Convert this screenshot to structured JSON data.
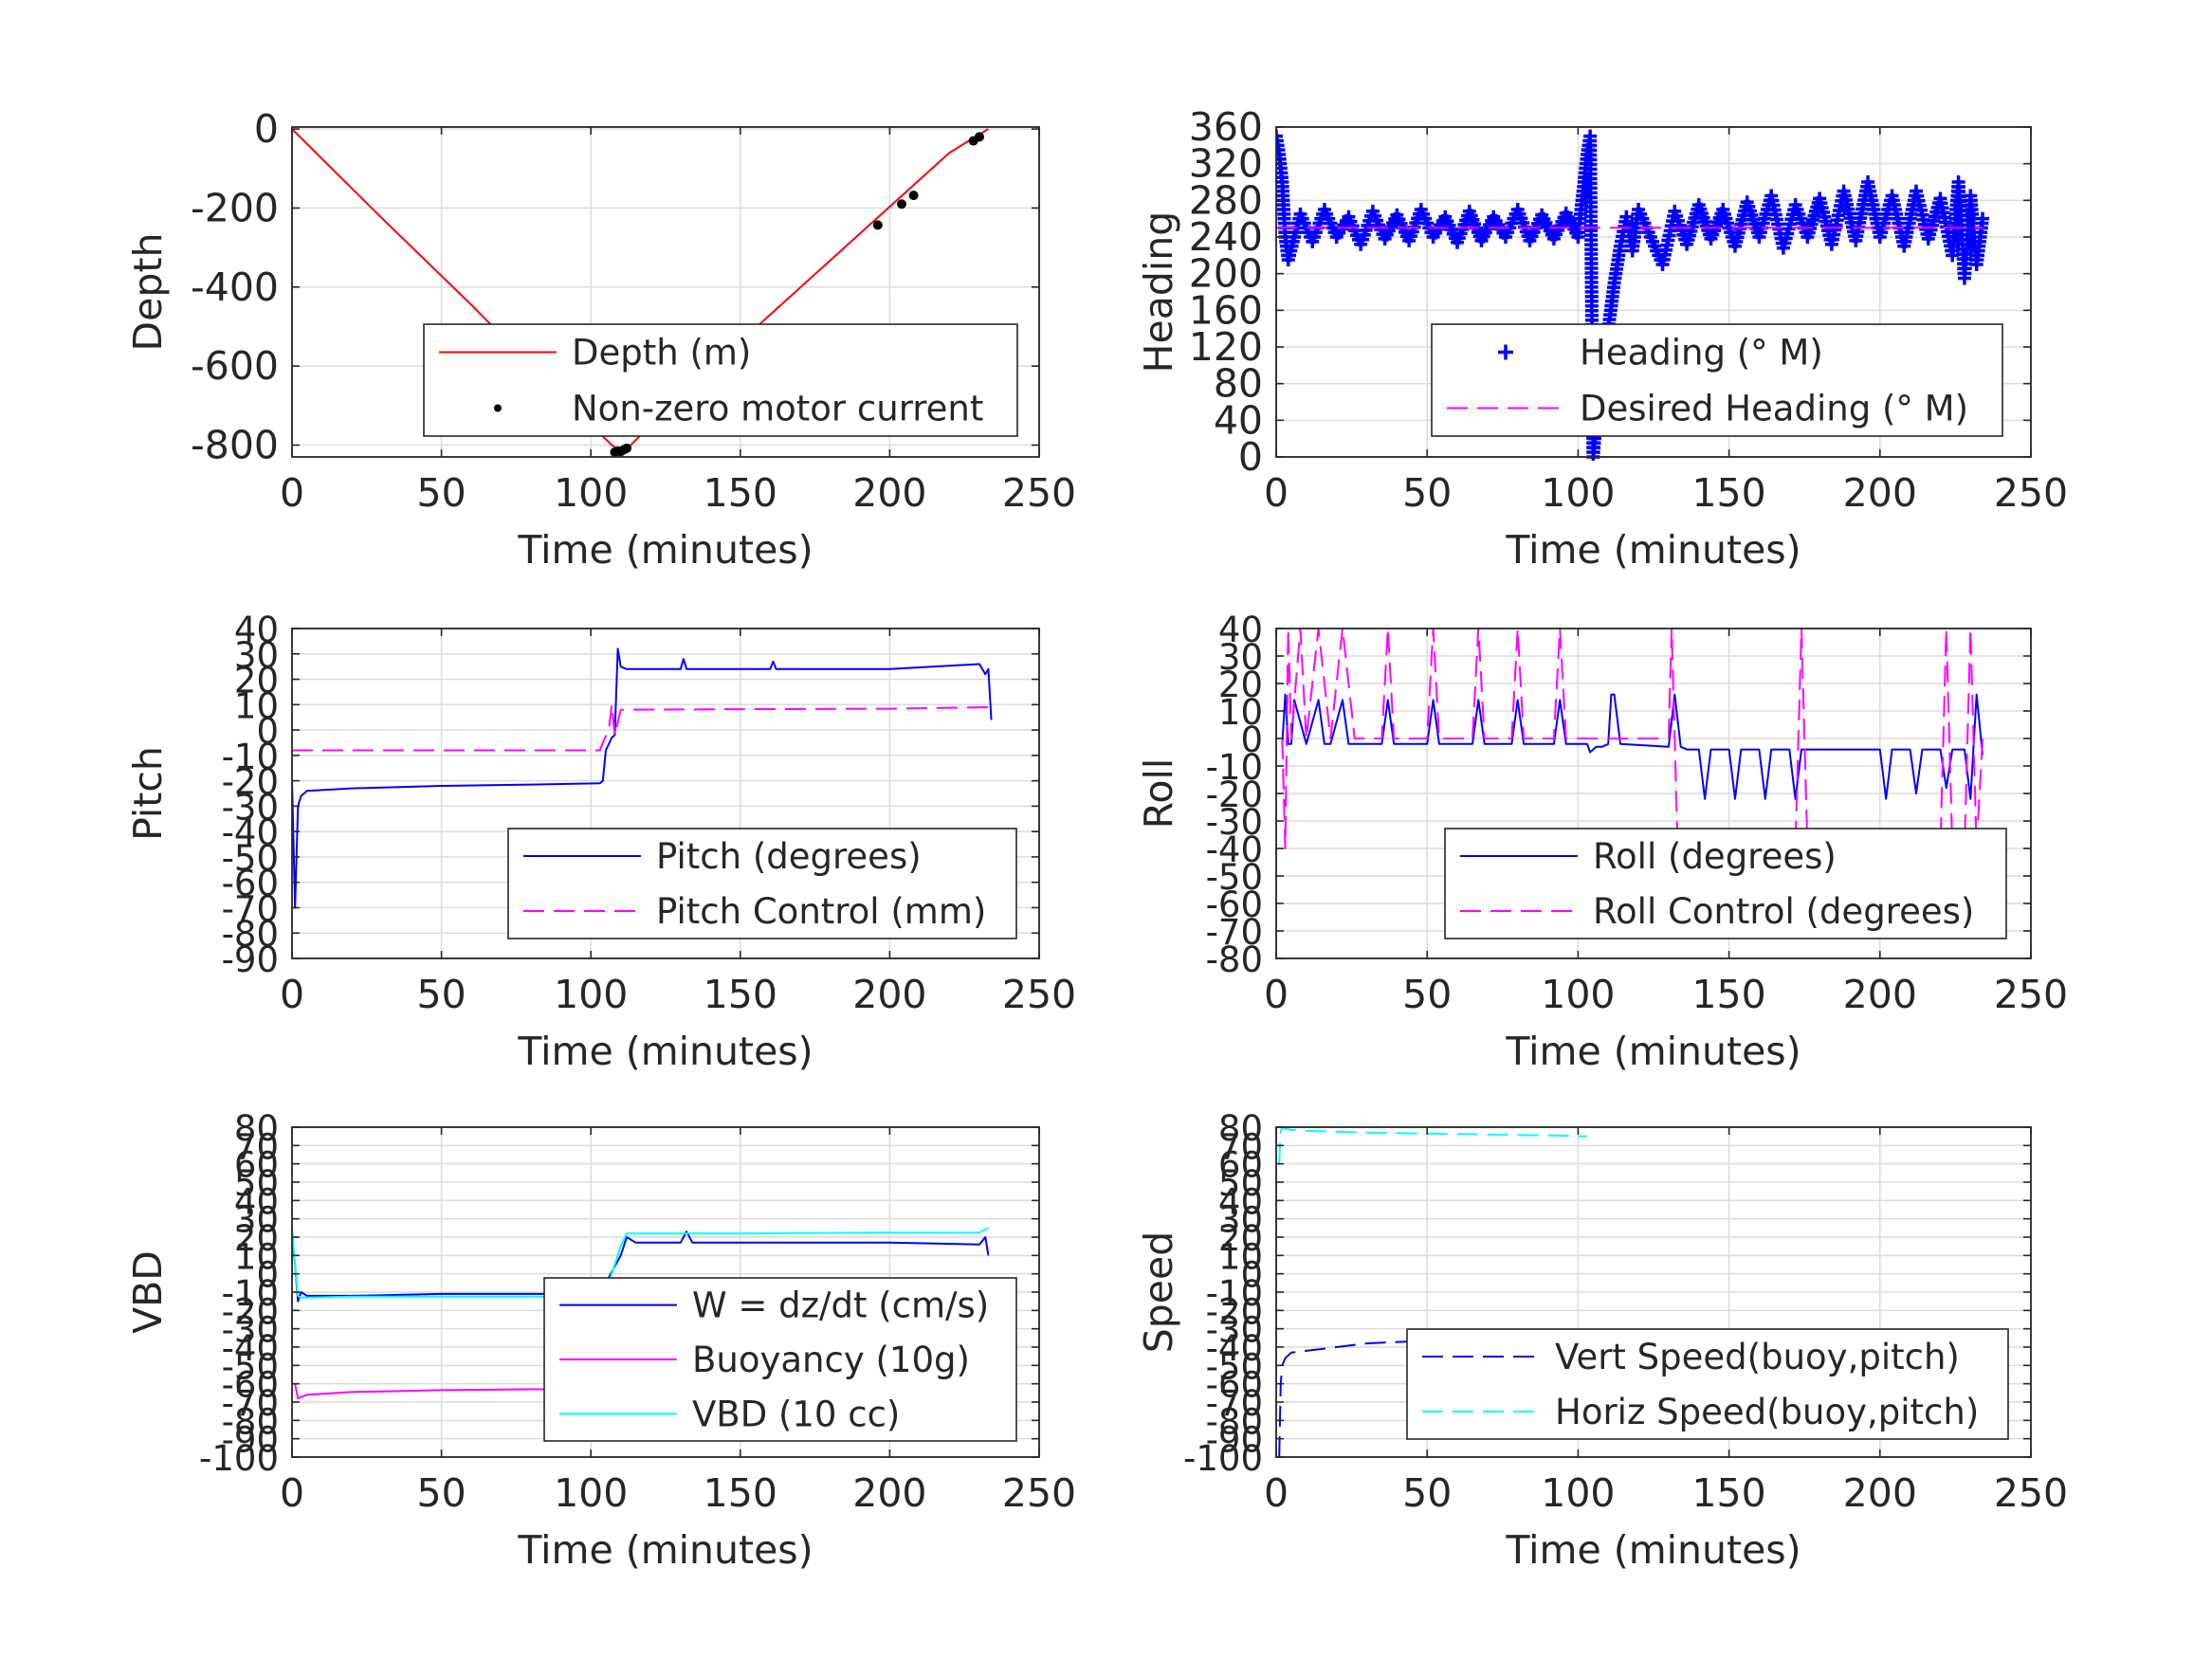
{
  "figure": {
    "background": "#ffffff"
  },
  "colors": {
    "red": "#ff0000",
    "blue": "#0000ff",
    "magenta": "#ff00ff",
    "cyan": "#00ffff",
    "black": "#000000",
    "grid": "#dcdcdc",
    "axis": "#262626",
    "text": "#262626"
  },
  "chart_data": [
    {
      "id": "depth",
      "type": "line",
      "xlabel": "Time (minutes)",
      "ylabel": "Depth",
      "xlim": [
        0,
        250
      ],
      "ylim": [
        -830,
        5
      ],
      "xticks": [
        0,
        50,
        100,
        150,
        200,
        250
      ],
      "xtick_labels": [
        "0",
        "50",
        "100",
        "150",
        "200",
        "250"
      ],
      "yticks": [
        0,
        -200,
        -400,
        -600,
        -800
      ],
      "ytick_labels": [
        "0",
        "-200",
        "-400",
        "-600",
        "-800"
      ],
      "grid": true,
      "legend_position": "lower-right",
      "series": [
        {
          "name": "Depth (m)",
          "color": "#ff0000",
          "style": "solid",
          "x": [
            0,
            30,
            60,
            90,
            107,
            110,
            112,
            130,
            160,
            190,
            220,
            233
          ],
          "y": [
            0,
            -225,
            -445,
            -675,
            -800,
            -815,
            -810,
            -675,
            -470,
            -265,
            -60,
            0
          ]
        },
        {
          "name": "Non-zero motor current",
          "color": "#000000",
          "style": "dots",
          "x": [
            108,
            109,
            110,
            111,
            112,
            196,
            204,
            208,
            228,
            230
          ],
          "y": [
            -818,
            -815,
            -816,
            -812,
            -808,
            -243,
            -190,
            -168,
            -30,
            -20
          ]
        }
      ]
    },
    {
      "id": "heading",
      "type": "line",
      "xlabel": "Time (minutes)",
      "ylabel": "Heading",
      "xlim": [
        0,
        250
      ],
      "ylim": [
        0,
        360
      ],
      "xticks": [
        0,
        50,
        100,
        150,
        200,
        250
      ],
      "xtick_labels": [
        "0",
        "50",
        "100",
        "150",
        "200",
        "250"
      ],
      "yticks": [
        0,
        40,
        80,
        120,
        160,
        200,
        240,
        280,
        320,
        360
      ],
      "ytick_labels": [
        "0",
        "40",
        "80",
        "120",
        "160",
        "200",
        "240",
        "280",
        "320",
        "360"
      ],
      "grid": true,
      "legend_position": "lower-right",
      "series": [
        {
          "name": "Heading (° M)",
          "color": "#0000ff",
          "style": "plus",
          "x": [
            0,
            1,
            2,
            3,
            4,
            8,
            12,
            16,
            20,
            24,
            28,
            32,
            36,
            40,
            44,
            48,
            52,
            56,
            60,
            64,
            68,
            72,
            76,
            80,
            84,
            88,
            92,
            96,
            100,
            103,
            104,
            105,
            106,
            107,
            108,
            110,
            112,
            114,
            116,
            118,
            120,
            124,
            128,
            132,
            136,
            140,
            144,
            148,
            152,
            156,
            160,
            164,
            168,
            172,
            176,
            180,
            184,
            188,
            192,
            196,
            200,
            204,
            208,
            212,
            216,
            220,
            224,
            226,
            228,
            230,
            232,
            234
          ],
          "y": [
            350,
            330,
            300,
            240,
            215,
            265,
            235,
            270,
            240,
            262,
            232,
            268,
            238,
            264,
            236,
            270,
            240,
            262,
            234,
            268,
            236,
            262,
            240,
            270,
            236,
            264,
            238,
            266,
            240,
            330,
            350,
            0,
            40,
            100,
            80,
            140,
            190,
            230,
            262,
            225,
            270,
            240,
            210,
            268,
            232,
            275,
            238,
            270,
            230,
            278,
            240,
            285,
            228,
            275,
            240,
            282,
            232,
            290,
            236,
            300,
            240,
            285,
            230,
            290,
            238,
            282,
            220,
            300,
            195,
            285,
            210,
            260
          ]
        },
        {
          "name": "Desired Heading (° M)",
          "color": "#ff00ff",
          "style": "dashed",
          "x": [
            0,
            234
          ],
          "y": [
            250,
            250
          ]
        }
      ]
    },
    {
      "id": "pitch",
      "type": "line",
      "xlabel": "Time (minutes)",
      "ylabel": "Pitch",
      "xlim": [
        0,
        250
      ],
      "ylim": [
        -90,
        40
      ],
      "xticks": [
        0,
        50,
        100,
        150,
        200,
        250
      ],
      "xtick_labels": [
        "0",
        "50",
        "100",
        "150",
        "200",
        "250"
      ],
      "yticks": [
        -90,
        -80,
        -70,
        -60,
        -50,
        -40,
        -30,
        -20,
        -10,
        0,
        10,
        20,
        30,
        40
      ],
      "ytick_labels": [
        "-90",
        "-80",
        "-70",
        "-60",
        "-50",
        "-40",
        "-30",
        "-20",
        "-10",
        "0",
        "10",
        "20",
        "30",
        "40"
      ],
      "grid": true,
      "legend_position": "lower-right",
      "series": [
        {
          "name": "Pitch (degrees)",
          "color": "#0000ff",
          "style": "solid",
          "x": [
            0,
            1,
            2,
            3,
            5,
            20,
            50,
            80,
            103,
            104,
            105,
            107,
            108,
            109,
            110,
            112,
            125,
            130,
            131,
            132,
            150,
            160,
            161,
            162,
            190,
            200,
            230,
            232,
            233,
            234
          ],
          "y": [
            -20,
            -70,
            -30,
            -26,
            -24,
            -23,
            -22,
            -21.5,
            -21,
            -20,
            -8,
            -3,
            -2,
            32,
            25,
            24,
            24,
            24,
            28,
            24,
            24,
            24,
            27,
            24,
            24,
            24,
            26,
            22,
            24,
            4
          ]
        },
        {
          "name": "Pitch Control (mm)",
          "color": "#ff00ff",
          "style": "dashed",
          "x": [
            0,
            103,
            104,
            106,
            107,
            108,
            110,
            150,
            200,
            234
          ],
          "y": [
            -8,
            -8,
            -5,
            0,
            10,
            -2,
            8,
            8.2,
            8.4,
            9
          ]
        }
      ]
    },
    {
      "id": "roll",
      "type": "line",
      "xlabel": "Time (minutes)",
      "ylabel": "Roll",
      "xlim": [
        0,
        250
      ],
      "ylim": [
        -80,
        40
      ],
      "xticks": [
        0,
        50,
        100,
        150,
        200,
        250
      ],
      "xtick_labels": [
        "0",
        "50",
        "100",
        "150",
        "200",
        "250"
      ],
      "yticks": [
        -80,
        -70,
        -60,
        -50,
        -40,
        -30,
        -20,
        -10,
        0,
        10,
        20,
        30,
        40
      ],
      "ytick_labels": [
        "-80",
        "-70",
        "-60",
        "-50",
        "-40",
        "-30",
        "-20",
        "-10",
        "0",
        "10",
        "20",
        "30",
        "40"
      ],
      "grid": true,
      "legend_position": "lower-right",
      "series": [
        {
          "name": "Roll (degrees)",
          "color": "#0000ff",
          "style": "solid",
          "x": [
            2,
            3,
            4,
            5,
            6,
            10,
            14,
            16,
            18,
            22,
            24,
            26,
            35,
            37,
            39,
            50,
            52,
            54,
            65,
            67,
            69,
            78,
            80,
            82,
            92,
            94,
            96,
            103,
            104,
            106,
            108,
            110,
            111,
            112,
            114,
            130,
            132,
            134,
            136,
            140,
            142,
            144,
            146,
            150,
            152,
            154,
            156,
            160,
            162,
            164,
            166,
            170,
            172,
            174,
            176,
            180,
            200,
            202,
            204,
            206,
            210,
            212,
            214,
            220,
            222,
            224,
            226,
            228,
            230,
            232,
            234
          ],
          "y": [
            -2,
            16,
            -2,
            -2,
            14,
            -2,
            14,
            -2,
            -2,
            14,
            -2,
            -2,
            -2,
            14,
            -2,
            -2,
            14,
            -2,
            -2,
            14,
            -2,
            -2,
            14,
            -2,
            -2,
            14,
            -2,
            -2,
            -5,
            -3,
            -3,
            -2,
            16,
            16,
            -2,
            -3,
            16,
            -3,
            -4,
            -4,
            -22,
            -4,
            -4,
            -4,
            -22,
            -4,
            -4,
            -4,
            -22,
            -4,
            -4,
            -4,
            -22,
            -4,
            -4,
            -4,
            -4,
            -22,
            -4,
            -4,
            -4,
            -20,
            -4,
            -4,
            -18,
            -4,
            -4,
            -4,
            -22,
            16,
            -6
          ]
        },
        {
          "name": "Roll Control (degrees)",
          "color": "#ff00ff",
          "style": "dashed",
          "x": [
            2,
            3,
            4,
            5,
            8,
            10,
            14,
            18,
            22,
            26,
            35,
            37,
            39,
            50,
            52,
            54,
            65,
            67,
            69,
            78,
            80,
            82,
            92,
            94,
            96,
            103,
            104,
            130,
            131,
            132,
            133,
            136,
            140,
            142,
            144,
            150,
            152,
            154,
            160,
            162,
            164,
            170,
            172,
            174,
            176,
            180,
            200,
            202,
            204,
            206,
            210,
            220,
            222,
            224,
            226,
            228,
            230,
            232,
            234
          ],
          "y": [
            0,
            -40,
            40,
            0,
            40,
            0,
            40,
            0,
            40,
            0,
            0,
            40,
            0,
            0,
            40,
            0,
            0,
            40,
            0,
            0,
            40,
            0,
            0,
            40,
            0,
            0,
            0,
            0,
            40,
            0,
            -40,
            -40,
            -40,
            -40,
            -40,
            -40,
            -40,
            -40,
            -40,
            -40,
            -40,
            -40,
            -40,
            40,
            -40,
            -40,
            -40,
            -40,
            -40,
            -40,
            -40,
            -40,
            40,
            -40,
            -40,
            -40,
            40,
            -40,
            0
          ]
        }
      ]
    },
    {
      "id": "vbd",
      "type": "line",
      "xlabel": "Time (minutes)",
      "ylabel": "VBD",
      "xlim": [
        0,
        250
      ],
      "ylim": [
        -100,
        80
      ],
      "xticks": [
        0,
        50,
        100,
        150,
        200,
        250
      ],
      "xtick_labels": [
        "0",
        "50",
        "100",
        "150",
        "200",
        "250"
      ],
      "yticks": [
        -100,
        -90,
        -80,
        -70,
        -60,
        -50,
        -40,
        -30,
        -20,
        -10,
        0,
        10,
        20,
        30,
        40,
        50,
        60,
        70,
        80
      ],
      "ytick_labels": [
        "-100",
        "-90",
        "-80",
        "-70",
        "-60",
        "-50",
        "-40",
        "-30",
        "-20",
        "-10",
        "0",
        "10",
        "20",
        "30",
        "40",
        "50",
        "60",
        "70",
        "80"
      ],
      "grid": true,
      "legend_position": "lower-right",
      "series": [
        {
          "name": "W = dz/dt (cm/s)",
          "color": "#0000ff",
          "style": "solid",
          "x": [
            0,
            1,
            2,
            3,
            5,
            20,
            50,
            80,
            100,
            103,
            105,
            110,
            112,
            115,
            130,
            132,
            134,
            150,
            160,
            180,
            200,
            230,
            232,
            233
          ],
          "y": [
            20,
            5,
            -15,
            -10,
            -12,
            -12,
            -11,
            -11,
            -11,
            -10,
            -5,
            10,
            20,
            17,
            17,
            23,
            17,
            17,
            17,
            17,
            17,
            16,
            20,
            10
          ]
        },
        {
          "name": "Buoyancy (10g)",
          "color": "#ff00ff",
          "style": "solid",
          "x": [
            1,
            2,
            5,
            20,
            50,
            80,
            103
          ],
          "y": [
            -60,
            -68,
            -66,
            -64.5,
            -63.5,
            -63,
            -63
          ]
        },
        {
          "name": "VBD (10 cc)",
          "color": "#00ffff",
          "style": "solid",
          "x": [
            0,
            1,
            2,
            3,
            5,
            20,
            50,
            80,
            103,
            106,
            110,
            112,
            150,
            200,
            230,
            233
          ],
          "y": [
            25,
            5,
            -12,
            -13,
            -13,
            -12.5,
            -12.5,
            -12.5,
            -12.5,
            -5,
            15,
            22,
            22,
            22.5,
            22.5,
            25
          ]
        }
      ]
    },
    {
      "id": "speed",
      "type": "line",
      "xlabel": "Time (minutes)",
      "ylabel": "Speed",
      "xlim": [
        0,
        250
      ],
      "ylim": [
        -100,
        80
      ],
      "xticks": [
        0,
        50,
        100,
        150,
        200,
        250
      ],
      "xtick_labels": [
        "0",
        "50",
        "100",
        "150",
        "200",
        "250"
      ],
      "yticks": [
        -100,
        -90,
        -80,
        -70,
        -60,
        -50,
        -40,
        -30,
        -20,
        -10,
        0,
        10,
        20,
        30,
        40,
        50,
        60,
        70,
        80
      ],
      "ytick_labels": [
        "-100",
        "-90",
        "-80",
        "-70",
        "-60",
        "-50",
        "-40",
        "-30",
        "-20",
        "-10",
        "0",
        "10",
        "20",
        "30",
        "40",
        "50",
        "60",
        "70",
        "80"
      ],
      "grid": true,
      "legend_position": "lower-right",
      "series": [
        {
          "name": "Vert Speed(buoy,pitch)",
          "color": "#0000ff",
          "style": "dashed",
          "x": [
            1,
            1.5,
            2,
            3,
            5,
            10,
            20,
            30,
            50,
            70,
            90,
            103
          ],
          "y": [
            -100,
            -60,
            -50,
            -46,
            -43,
            -42,
            -40,
            -38,
            -36.5,
            -35.5,
            -35,
            -34.5
          ]
        },
        {
          "name": "Horiz Speed(buoy,pitch)",
          "color": "#00ffff",
          "style": "dashed",
          "x": [
            1,
            1.5,
            2,
            3,
            5,
            10,
            20,
            30,
            50,
            70,
            90,
            103
          ],
          "y": [
            60,
            78,
            80,
            79,
            78.5,
            78,
            77.5,
            77,
            76.5,
            76,
            75.5,
            75
          ]
        }
      ]
    }
  ]
}
